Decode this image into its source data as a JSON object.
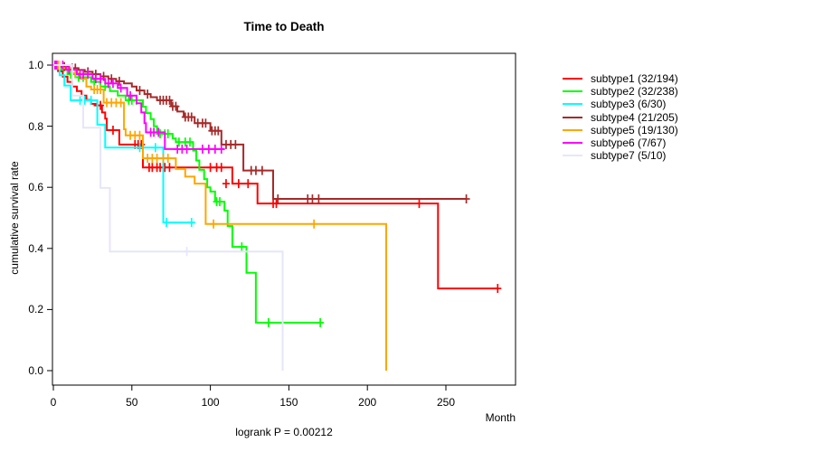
{
  "chart_data": {
    "type": "line",
    "variant": "kaplan-meier-step",
    "title": "Time to Death",
    "ylabel": "cumulative survival rate",
    "xlabel": "Month",
    "annotation": "logrank P = 0.00212",
    "xlim": [
      0,
      294
    ],
    "ylim": [
      0.0,
      1.0
    ],
    "x_ticks": [
      0,
      50,
      100,
      150,
      200,
      250
    ],
    "y_ticks": [
      0.0,
      0.2,
      0.4,
      0.6,
      0.8,
      1.0
    ],
    "grid": false,
    "legend_position": "right-outside",
    "axis_color": "#000000",
    "series": [
      {
        "name": "subtype1",
        "label": "subtype1 (32/194)",
        "color": "#FF0000",
        "end": 283,
        "steps": [
          [
            0,
            1
          ],
          [
            3,
            0.98
          ],
          [
            6,
            0.962
          ],
          [
            9,
            0.945
          ],
          [
            12,
            0.93
          ],
          [
            15,
            0.915
          ],
          [
            18,
            0.9
          ],
          [
            21,
            0.886
          ],
          [
            24,
            0.873
          ],
          [
            27,
            0.868
          ],
          [
            31,
            0.845
          ],
          [
            33,
            0.825
          ],
          [
            34,
            0.787
          ],
          [
            42,
            0.74
          ],
          [
            57,
            0.665
          ],
          [
            114,
            0.612
          ],
          [
            130,
            0.547
          ],
          [
            245,
            0.269
          ]
        ],
        "censors": [
          [
            20,
            0.886
          ],
          [
            28,
            0.868
          ],
          [
            30,
            0.868
          ],
          [
            38,
            0.787
          ],
          [
            52,
            0.74
          ],
          [
            54,
            0.74
          ],
          [
            56,
            0.74
          ],
          [
            61,
            0.665
          ],
          [
            63,
            0.665
          ],
          [
            66,
            0.665
          ],
          [
            68,
            0.665
          ],
          [
            71,
            0.665
          ],
          [
            74,
            0.665
          ],
          [
            100,
            0.665
          ],
          [
            104,
            0.665
          ],
          [
            107,
            0.665
          ],
          [
            110,
            0.612
          ],
          [
            118,
            0.612
          ],
          [
            124,
            0.612
          ],
          [
            140,
            0.547
          ],
          [
            142,
            0.547
          ],
          [
            233,
            0.547
          ],
          [
            283,
            0.269
          ]
        ]
      },
      {
        "name": "subtype2",
        "label": "subtype2 (32/238)",
        "color": "#00FF00",
        "end": 170,
        "steps": [
          [
            0,
            1
          ],
          [
            5,
            0.985
          ],
          [
            9,
            0.97
          ],
          [
            14,
            0.96
          ],
          [
            24,
            0.945
          ],
          [
            30,
            0.93
          ],
          [
            36,
            0.915
          ],
          [
            41,
            0.9
          ],
          [
            46,
            0.885
          ],
          [
            57,
            0.864
          ],
          [
            59,
            0.843
          ],
          [
            62,
            0.823
          ],
          [
            64,
            0.8
          ],
          [
            66,
            0.775
          ],
          [
            76,
            0.76
          ],
          [
            78,
            0.748
          ],
          [
            89,
            0.72
          ],
          [
            91,
            0.688
          ],
          [
            93,
            0.657
          ],
          [
            96,
            0.627
          ],
          [
            98,
            0.6
          ],
          [
            100,
            0.586
          ],
          [
            103,
            0.553
          ],
          [
            109,
            0.524
          ],
          [
            111,
            0.473
          ],
          [
            114,
            0.405
          ],
          [
            123,
            0.32
          ],
          [
            129,
            0.157
          ]
        ],
        "censors": [
          [
            3,
            1
          ],
          [
            11,
            0.97
          ],
          [
            16,
            0.96
          ],
          [
            19,
            0.96
          ],
          [
            26,
            0.945
          ],
          [
            33,
            0.93
          ],
          [
            48,
            0.885
          ],
          [
            50,
            0.885
          ],
          [
            53,
            0.885
          ],
          [
            68,
            0.775
          ],
          [
            71,
            0.775
          ],
          [
            73,
            0.775
          ],
          [
            80,
            0.748
          ],
          [
            84,
            0.748
          ],
          [
            87,
            0.748
          ],
          [
            104,
            0.553
          ],
          [
            106,
            0.553
          ],
          [
            120,
            0.405
          ],
          [
            137,
            0.157
          ],
          [
            170,
            0.157
          ]
        ]
      },
      {
        "name": "subtype3",
        "label": "subtype3 (6/30)",
        "color": "#00FFFF",
        "end": 90,
        "steps": [
          [
            0,
            1
          ],
          [
            4,
            0.967
          ],
          [
            7,
            0.933
          ],
          [
            11,
            0.885
          ],
          [
            28,
            0.805
          ],
          [
            33,
            0.73
          ],
          [
            70,
            0.485
          ]
        ],
        "censors": [
          [
            2,
            1
          ],
          [
            17,
            0.885
          ],
          [
            20,
            0.885
          ],
          [
            24,
            0.885
          ],
          [
            55,
            0.73
          ],
          [
            65,
            0.73
          ],
          [
            72,
            0.485
          ],
          [
            88,
            0.485
          ]
        ]
      },
      {
        "name": "subtype4",
        "label": "subtype4 (21/205)",
        "color": "#A52A2A",
        "end": 263,
        "steps": [
          [
            0,
            1
          ],
          [
            5,
            0.995
          ],
          [
            10,
            0.99
          ],
          [
            16,
            0.984
          ],
          [
            20,
            0.978
          ],
          [
            25,
            0.97
          ],
          [
            30,
            0.963
          ],
          [
            35,
            0.955
          ],
          [
            40,
            0.947
          ],
          [
            45,
            0.94
          ],
          [
            50,
            0.93
          ],
          [
            53,
            0.917
          ],
          [
            58,
            0.905
          ],
          [
            62,
            0.895
          ],
          [
            66,
            0.885
          ],
          [
            75,
            0.865
          ],
          [
            79,
            0.848
          ],
          [
            83,
            0.83
          ],
          [
            90,
            0.81
          ],
          [
            100,
            0.785
          ],
          [
            107,
            0.74
          ],
          [
            121,
            0.655
          ],
          [
            140,
            0.562
          ]
        ],
        "censors": [
          [
            2,
            1
          ],
          [
            4,
            1
          ],
          [
            7,
            0.995
          ],
          [
            12,
            0.99
          ],
          [
            14,
            0.99
          ],
          [
            22,
            0.978
          ],
          [
            27,
            0.97
          ],
          [
            32,
            0.963
          ],
          [
            37,
            0.955
          ],
          [
            42,
            0.947
          ],
          [
            55,
            0.917
          ],
          [
            60,
            0.905
          ],
          [
            68,
            0.885
          ],
          [
            70,
            0.885
          ],
          [
            72,
            0.885
          ],
          [
            74,
            0.885
          ],
          [
            76,
            0.865
          ],
          [
            78,
            0.865
          ],
          [
            84,
            0.83
          ],
          [
            86,
            0.83
          ],
          [
            88,
            0.83
          ],
          [
            92,
            0.81
          ],
          [
            95,
            0.81
          ],
          [
            97,
            0.81
          ],
          [
            101,
            0.785
          ],
          [
            103,
            0.785
          ],
          [
            105,
            0.785
          ],
          [
            110,
            0.74
          ],
          [
            113,
            0.74
          ],
          [
            116,
            0.74
          ],
          [
            126,
            0.655
          ],
          [
            129,
            0.655
          ],
          [
            133,
            0.655
          ],
          [
            143,
            0.562
          ],
          [
            162,
            0.562
          ],
          [
            165,
            0.562
          ],
          [
            169,
            0.562
          ],
          [
            263,
            0.562
          ]
        ]
      },
      {
        "name": "subtype5",
        "label": "subtype5 (19/130)",
        "color": "#FFA500",
        "end": 212,
        "steps": [
          [
            0,
            1
          ],
          [
            6,
            0.99
          ],
          [
            12,
            0.973
          ],
          [
            17,
            0.955
          ],
          [
            21,
            0.93
          ],
          [
            24,
            0.92
          ],
          [
            32,
            0.877
          ],
          [
            45,
            0.79
          ],
          [
            46,
            0.77
          ],
          [
            57,
            0.695
          ],
          [
            78,
            0.66
          ],
          [
            84,
            0.635
          ],
          [
            90,
            0.612
          ],
          [
            97,
            0.48
          ],
          [
            212,
            0.0
          ]
        ],
        "censors": [
          [
            3,
            1
          ],
          [
            14,
            0.973
          ],
          [
            26,
            0.92
          ],
          [
            28,
            0.92
          ],
          [
            30,
            0.92
          ],
          [
            34,
            0.877
          ],
          [
            37,
            0.877
          ],
          [
            40,
            0.877
          ],
          [
            43,
            0.877
          ],
          [
            49,
            0.77
          ],
          [
            52,
            0.77
          ],
          [
            55,
            0.77
          ],
          [
            60,
            0.695
          ],
          [
            63,
            0.695
          ],
          [
            66,
            0.695
          ],
          [
            70,
            0.695
          ],
          [
            73,
            0.695
          ],
          [
            102,
            0.48
          ],
          [
            166,
            0.48
          ]
        ]
      },
      {
        "name": "subtype6",
        "label": "subtype6 (7/67)",
        "color": "#FF00FF",
        "end": 109,
        "steps": [
          [
            0,
            1
          ],
          [
            8,
            0.985
          ],
          [
            15,
            0.97
          ],
          [
            25,
            0.955
          ],
          [
            33,
            0.94
          ],
          [
            41,
            0.925
          ],
          [
            47,
            0.9
          ],
          [
            53,
            0.875
          ],
          [
            56,
            0.845
          ],
          [
            58,
            0.81
          ],
          [
            59,
            0.78
          ],
          [
            71,
            0.725
          ]
        ],
        "censors": [
          [
            1,
            1
          ],
          [
            2,
            1
          ],
          [
            4,
            1
          ],
          [
            6,
            1
          ],
          [
            10,
            0.985
          ],
          [
            12,
            0.985
          ],
          [
            17,
            0.97
          ],
          [
            19,
            0.97
          ],
          [
            22,
            0.97
          ],
          [
            27,
            0.955
          ],
          [
            30,
            0.955
          ],
          [
            35,
            0.94
          ],
          [
            38,
            0.94
          ],
          [
            43,
            0.925
          ],
          [
            49,
            0.9
          ],
          [
            62,
            0.78
          ],
          [
            64,
            0.78
          ],
          [
            67,
            0.78
          ],
          [
            79,
            0.725
          ],
          [
            82,
            0.725
          ],
          [
            85,
            0.725
          ],
          [
            95,
            0.725
          ],
          [
            99,
            0.725
          ],
          [
            103,
            0.725
          ],
          [
            107,
            0.725
          ]
        ]
      },
      {
        "name": "subtype7",
        "label": "subtype7 (5/10)",
        "color": "#E6E6FA",
        "end": 146,
        "steps": [
          [
            0,
            1
          ],
          [
            12,
            0.9
          ],
          [
            19,
            0.795
          ],
          [
            30,
            0.598
          ],
          [
            36,
            0.39
          ],
          [
            146,
            0.0
          ]
        ],
        "censors": [
          [
            4,
            1
          ],
          [
            85,
            0.39
          ]
        ]
      }
    ]
  }
}
